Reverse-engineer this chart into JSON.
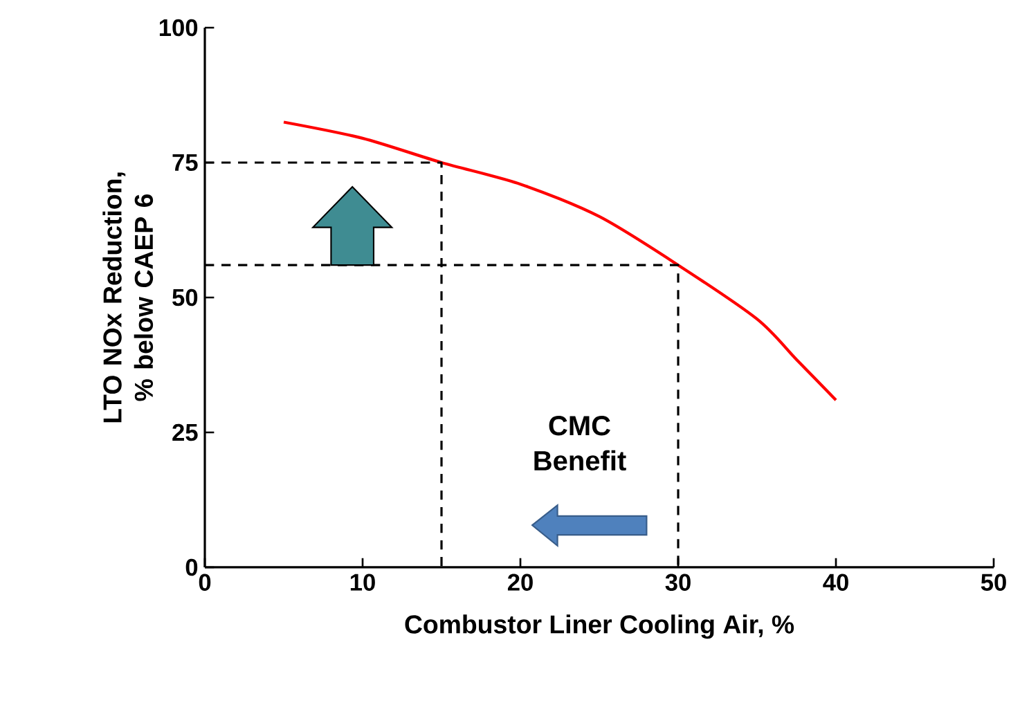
{
  "chart_data": {
    "type": "line",
    "xlabel": "Combustor Liner Cooling Air, %",
    "ylabel": "LTO NOx Reduction, % below CAEP 6",
    "xlim": [
      0,
      50
    ],
    "xticks": [
      0,
      10,
      20,
      30,
      40,
      50
    ],
    "ylim": [
      0,
      100
    ],
    "yticks": [
      0,
      25,
      50,
      75,
      100
    ],
    "grid": false,
    "marker": "none",
    "series": [
      {
        "color": "#ff0000",
        "line_style": "solid",
        "x": [
          5,
          10,
          15,
          20,
          25,
          30,
          35,
          37.5,
          40
        ],
        "values": [
          82.5,
          79.5,
          75,
          71,
          65,
          56,
          46,
          38.5,
          31
        ]
      },
      {
        "color": "#000000",
        "line_style": "dashed",
        "x": [
          0,
          15,
          15
        ],
        "values": [
          75,
          75,
          0
        ]
      },
      {
        "color": "#000000",
        "line_style": "dashed",
        "x": [
          0,
          30,
          30
        ],
        "values": [
          56,
          56,
          0
        ]
      }
    ],
    "annotations": [
      "CMC Benefit"
    ]
  }
}
